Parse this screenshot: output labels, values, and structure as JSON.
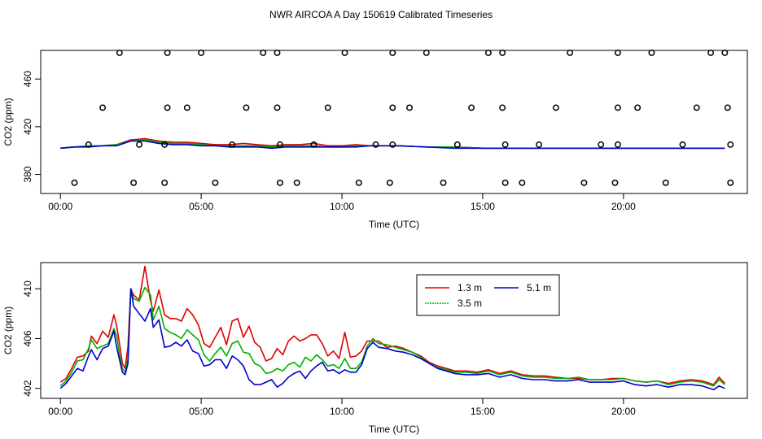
{
  "page_title": "NWR AIRCOA A  Day 150619  Calibrated Timeseries",
  "chart_data": [
    {
      "id": "top",
      "type": "line",
      "xlabel": "Time (UTC)",
      "ylabel": "CO2 (ppm)",
      "xlim": [
        -0.7,
        24.4
      ],
      "ylim": [
        364,
        484
      ],
      "xticks": [
        0,
        5,
        10,
        15,
        20
      ],
      "xtick_labels": [
        "00:00",
        "05:00",
        "10:00",
        "15:00",
        "20:00"
      ],
      "yticks": [
        380,
        420,
        460
      ],
      "ytick_labels": [
        "380",
        "420",
        "460"
      ],
      "series": [
        {
          "name": "1.3 m",
          "color": "#e00000",
          "x": [
            0,
            0.5,
            1,
            1.5,
            2,
            2.5,
            3,
            3.5,
            4,
            4.5,
            5,
            5.5,
            6,
            6.5,
            7,
            7.5,
            8,
            8.5,
            9,
            9.5,
            10,
            10.5,
            11,
            11.5,
            12,
            13,
            14,
            15,
            16,
            17,
            18,
            19,
            20,
            21,
            22,
            23,
            23.6
          ],
          "y": [
            402,
            403,
            404,
            404,
            405,
            409,
            410,
            408,
            407,
            407,
            406,
            405,
            405,
            406,
            405,
            404,
            405,
            405,
            406,
            404,
            404,
            405,
            404,
            404,
            404,
            403,
            403,
            402,
            402,
            402,
            402,
            402,
            402,
            402,
            402,
            402,
            402
          ]
        },
        {
          "name": "3.5 m",
          "color": "#00b000",
          "x": [
            0,
            0.5,
            1,
            1.5,
            2,
            2.5,
            3,
            3.5,
            4,
            4.5,
            5,
            5.5,
            6,
            6.5,
            7,
            7.5,
            8,
            8.5,
            9,
            9.5,
            10,
            10.5,
            11,
            11.5,
            12,
            13,
            14,
            15,
            16,
            17,
            18,
            19,
            20,
            21,
            22,
            23,
            23.6
          ],
          "y": [
            402,
            403,
            404,
            404,
            405,
            408,
            409,
            407,
            406,
            406,
            405,
            404,
            404,
            404,
            404,
            403,
            404,
            404,
            404,
            403,
            403,
            404,
            404,
            404,
            404,
            403,
            403,
            402,
            402,
            402,
            402,
            402,
            402,
            402,
            402,
            402,
            402
          ]
        },
        {
          "name": "5.1 m",
          "color": "#0000d0",
          "x": [
            0,
            0.5,
            1,
            1.5,
            2,
            2.5,
            3,
            3.5,
            4,
            4.5,
            5,
            5.5,
            6,
            6.5,
            7,
            7.5,
            8,
            8.5,
            9,
            9.5,
            10,
            10.5,
            11,
            11.5,
            12,
            13,
            14,
            15,
            16,
            17,
            18,
            19,
            20,
            21,
            22,
            23,
            23.6
          ],
          "y": [
            402,
            403,
            403,
            404,
            404,
            408,
            408,
            406,
            405,
            405,
            404,
            404,
            403,
            403,
            403,
            402,
            403,
            403,
            403,
            403,
            403,
            403,
            404,
            404,
            404,
            403,
            402,
            402,
            402,
            402,
            402,
            402,
            402,
            402,
            402,
            402,
            402
          ]
        }
      ],
      "markers": {
        "x": [
          2.1,
          3.8,
          5,
          7.2,
          7.7,
          10.1,
          11.8,
          13,
          15.2,
          15.7,
          18.1,
          19.8,
          21,
          23.1,
          23.6,
          1.5,
          3.8,
          4.5,
          6.6,
          7.7,
          9.5,
          11.8,
          12.4,
          14.6,
          15.7,
          17.6,
          19.8,
          20.5,
          22.6,
          23.7,
          1,
          2.8,
          3.7,
          6.1,
          7.8,
          9,
          11.2,
          11.8,
          14.1,
          15.8,
          17,
          19.2,
          19.8,
          22.1,
          23.8,
          0.5,
          2.6,
          3.7,
          5.5,
          7.8,
          8.4,
          10.6,
          11.7,
          13.6,
          15.8,
          16.4,
          18.6,
          19.7,
          21.5,
          23.8
        ],
        "y": [
          482,
          482,
          482,
          482,
          482,
          482,
          482,
          482,
          482,
          482,
          482,
          482,
          482,
          482,
          482,
          436,
          436,
          436,
          436,
          436,
          436,
          436,
          436,
          436,
          436,
          436,
          436,
          436,
          436,
          436,
          405,
          405,
          405,
          405,
          405,
          405,
          405,
          405,
          405,
          405,
          405,
          405,
          405,
          405,
          405,
          373,
          373,
          373,
          373,
          373,
          373,
          373,
          373,
          373,
          373,
          373,
          373,
          373,
          373,
          373
        ]
      }
    },
    {
      "id": "bottom",
      "type": "line",
      "xlabel": "Time (UTC)",
      "ylabel": "CO2 (ppm)",
      "xlim": [
        -0.7,
        24.4
      ],
      "ylim": [
        401.2,
        412.1
      ],
      "xticks": [
        0,
        5,
        10,
        15,
        20
      ],
      "xtick_labels": [
        "00:00",
        "05:00",
        "10:00",
        "15:00",
        "20:00"
      ],
      "yticks": [
        402,
        406,
        410
      ],
      "ytick_labels": [
        "402",
        "406",
        "410"
      ],
      "legend": {
        "position": "top-right",
        "entries": [
          "1.3 m",
          "5.1 m",
          "3.5 m"
        ]
      },
      "series": [
        {
          "name": "1.3 m",
          "color": "#e00000",
          "x": [
            0,
            0.2,
            0.4,
            0.6,
            0.8,
            1,
            1.1,
            1.3,
            1.5,
            1.7,
            1.9,
            2,
            2.1,
            2.2,
            2.3,
            2.4,
            2.5,
            2.6,
            2.8,
            3,
            3.2,
            3.3,
            3.5,
            3.7,
            3.9,
            4.1,
            4.3,
            4.5,
            4.7,
            4.9,
            5.1,
            5.3,
            5.5,
            5.7,
            5.9,
            6.1,
            6.3,
            6.5,
            6.7,
            6.9,
            7.1,
            7.3,
            7.5,
            7.7,
            7.9,
            8.1,
            8.3,
            8.5,
            8.7,
            8.9,
            9.1,
            9.3,
            9.5,
            9.7,
            9.9,
            10.1,
            10.3,
            10.5,
            10.7,
            10.9,
            11.1,
            11.3,
            11.6,
            11.9,
            12.2,
            12.5,
            12.8,
            13.1,
            13.4,
            13.7,
            14,
            14.4,
            14.8,
            15.2,
            15.6,
            16,
            16.4,
            16.8,
            17.2,
            17.6,
            18,
            18.4,
            18.8,
            19.2,
            19.6,
            20,
            20.4,
            20.8,
            21.2,
            21.6,
            22,
            22.4,
            22.8,
            23.2,
            23.4,
            23.6
          ],
          "y": [
            402.5,
            402.8,
            403.6,
            404.5,
            404.6,
            405,
            406.2,
            405.6,
            406.6,
            406.1,
            407.9,
            407,
            405.6,
            404,
            403.6,
            405.4,
            410,
            409.5,
            409.1,
            411.8,
            409,
            408.2,
            409.9,
            407.9,
            407.6,
            407.6,
            407.4,
            408.4,
            407.9,
            407.1,
            405.6,
            405.3,
            406.1,
            406.9,
            405.5,
            407.4,
            407.6,
            406.1,
            407,
            405.7,
            405.3,
            404.2,
            404.4,
            405.2,
            404.7,
            405.8,
            406.2,
            405.8,
            406,
            406.3,
            406.3,
            405.6,
            404.6,
            405,
            404.4,
            406.5,
            404.5,
            404.6,
            405,
            405.8,
            405.8,
            405.8,
            405.3,
            405.4,
            405.2,
            404.9,
            404.6,
            404.1,
            403.8,
            403.6,
            403.4,
            403.4,
            403.3,
            403.5,
            403.2,
            403.4,
            403.1,
            403,
            403,
            402.9,
            402.8,
            402.8,
            402.7,
            402.7,
            402.8,
            402.8,
            402.6,
            402.5,
            402.6,
            402.4,
            402.6,
            402.7,
            402.6,
            402.3,
            402.9,
            402.4
          ]
        },
        {
          "name": "3.5 m",
          "color": "#00b000",
          "x": [
            0,
            0.2,
            0.4,
            0.6,
            0.8,
            1,
            1.1,
            1.3,
            1.5,
            1.7,
            1.9,
            2,
            2.1,
            2.2,
            2.3,
            2.4,
            2.5,
            2.6,
            2.8,
            3,
            3.2,
            3.3,
            3.5,
            3.7,
            3.9,
            4.1,
            4.3,
            4.5,
            4.7,
            4.9,
            5.1,
            5.3,
            5.5,
            5.7,
            5.9,
            6.1,
            6.3,
            6.5,
            6.7,
            6.9,
            7.1,
            7.3,
            7.5,
            7.7,
            7.9,
            8.1,
            8.3,
            8.5,
            8.7,
            8.9,
            9.1,
            9.3,
            9.5,
            9.7,
            9.9,
            10.1,
            10.3,
            10.5,
            10.7,
            10.9,
            11.1,
            11.3,
            11.6,
            11.9,
            12.2,
            12.5,
            12.8,
            13.1,
            13.4,
            13.7,
            14,
            14.4,
            14.8,
            15.2,
            15.6,
            16,
            16.4,
            16.8,
            17.2,
            17.6,
            18,
            18.4,
            18.8,
            19.2,
            19.6,
            20,
            20.4,
            20.8,
            21.2,
            21.6,
            22,
            22.4,
            22.8,
            23.2,
            23.4,
            23.6
          ],
          "y": [
            402.2,
            402.6,
            403.3,
            404.2,
            404.3,
            405.2,
            405.9,
            405.2,
            405.4,
            405.6,
            406.8,
            406.2,
            404.7,
            403.6,
            403.3,
            404.4,
            410,
            409.2,
            409,
            410.1,
            409.5,
            407.5,
            408.6,
            406.8,
            406.5,
            406.3,
            406,
            406.7,
            406.3,
            405.9,
            404.7,
            404.2,
            404.8,
            405.3,
            404.6,
            405.6,
            405.8,
            404.9,
            404.8,
            404,
            403.8,
            403.2,
            403.3,
            403.6,
            403.4,
            403.9,
            404.1,
            403.7,
            404.5,
            404.2,
            404.7,
            404.3,
            403.8,
            403.9,
            403.6,
            404.4,
            403.6,
            403.6,
            404.1,
            405.4,
            406,
            405.6,
            405.5,
            405.3,
            405.1,
            404.9,
            404.5,
            404,
            403.7,
            403.5,
            403.3,
            403.3,
            403.2,
            403.4,
            403.1,
            403.3,
            403,
            402.9,
            402.9,
            402.8,
            402.8,
            402.9,
            402.7,
            402.7,
            402.7,
            402.8,
            402.6,
            402.5,
            402.6,
            402.3,
            402.5,
            402.6,
            402.5,
            402.2,
            402.7,
            402.3
          ]
        },
        {
          "name": "5.1 m",
          "color": "#0000d0",
          "x": [
            0,
            0.2,
            0.4,
            0.6,
            0.8,
            1,
            1.1,
            1.3,
            1.5,
            1.7,
            1.9,
            2,
            2.1,
            2.2,
            2.3,
            2.4,
            2.5,
            2.6,
            2.8,
            3,
            3.2,
            3.3,
            3.5,
            3.7,
            3.9,
            4.1,
            4.3,
            4.5,
            4.7,
            4.9,
            5.1,
            5.3,
            5.5,
            5.7,
            5.9,
            6.1,
            6.3,
            6.5,
            6.7,
            6.9,
            7.1,
            7.3,
            7.5,
            7.7,
            7.9,
            8.1,
            8.3,
            8.5,
            8.7,
            8.9,
            9.1,
            9.3,
            9.5,
            9.7,
            9.9,
            10.1,
            10.3,
            10.5,
            10.7,
            10.9,
            11.1,
            11.3,
            11.6,
            11.9,
            12.2,
            12.5,
            12.8,
            13.1,
            13.4,
            13.7,
            14,
            14.4,
            14.8,
            15.2,
            15.6,
            16,
            16.4,
            16.8,
            17.2,
            17.6,
            18,
            18.4,
            18.8,
            19.2,
            19.6,
            20,
            20.4,
            20.8,
            21.2,
            21.6,
            22,
            22.4,
            22.8,
            23.2,
            23.4,
            23.6
          ],
          "y": [
            402,
            402.4,
            403,
            403.6,
            403.4,
            404.6,
            405.1,
            404.3,
            405.2,
            405.4,
            406.6,
            405.3,
            404.3,
            403.3,
            403.1,
            404,
            410,
            408.6,
            408,
            407.4,
            408.4,
            406.9,
            407.5,
            405.3,
            405.4,
            405.7,
            405.4,
            405.9,
            405,
            404.8,
            403.8,
            403.9,
            404.3,
            404.3,
            403.6,
            404.6,
            404.3,
            403.8,
            402.7,
            402.3,
            402.3,
            402.5,
            402.7,
            402.1,
            402.4,
            402.9,
            403.2,
            403.4,
            402.8,
            403.4,
            403.8,
            404.1,
            403.4,
            403.5,
            403.2,
            403.5,
            403.3,
            403.3,
            403.9,
            405.2,
            405.7,
            405.3,
            405.2,
            405,
            404.9,
            404.7,
            404.4,
            404,
            403.6,
            403.4,
            403.2,
            403.1,
            403.1,
            403.2,
            402.9,
            403.1,
            402.8,
            402.7,
            402.7,
            402.6,
            402.6,
            402.7,
            402.5,
            402.5,
            402.5,
            402.6,
            402.3,
            402.2,
            402.3,
            402.1,
            402.3,
            402.3,
            402.2,
            401.9,
            402.2,
            402
          ]
        }
      ]
    }
  ]
}
